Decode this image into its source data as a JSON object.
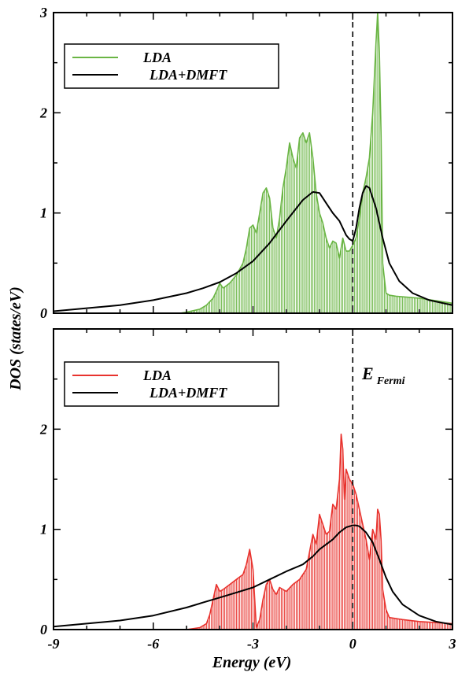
{
  "chart_data": [
    {
      "type": "area",
      "panel": "top",
      "xlim": [
        -9,
        3
      ],
      "ylim": [
        0,
        3
      ],
      "yticks": [
        "0",
        "1",
        "2",
        "3"
      ],
      "legend": "top-left",
      "series": [
        {
          "name": "LDA",
          "color": "#6ab544",
          "style": "filled-hatched",
          "x": [
            -9,
            -5.2,
            -5.0,
            -4.6,
            -4.4,
            -4.2,
            -4.1,
            -4.0,
            -3.9,
            -3.7,
            -3.5,
            -3.3,
            -3.2,
            -3.1,
            -3.0,
            -2.9,
            -2.8,
            -2.7,
            -2.6,
            -2.5,
            -2.4,
            -2.3,
            -2.2,
            -2.1,
            -2.0,
            -1.9,
            -1.8,
            -1.7,
            -1.6,
            -1.5,
            -1.4,
            -1.3,
            -1.2,
            -1.1,
            -1.0,
            -0.9,
            -0.8,
            -0.7,
            -0.6,
            -0.5,
            -0.4,
            -0.3,
            -0.2,
            -0.1,
            0.0,
            0.1,
            0.2,
            0.3,
            0.4,
            0.5,
            0.6,
            0.7,
            0.75,
            0.8,
            0.85,
            0.9,
            1.0,
            1.1,
            1.3,
            2.0,
            3.0
          ],
          "y": [
            0.0,
            0.0,
            0.01,
            0.04,
            0.08,
            0.15,
            0.22,
            0.3,
            0.25,
            0.3,
            0.38,
            0.5,
            0.65,
            0.85,
            0.88,
            0.8,
            1.0,
            1.2,
            1.25,
            1.15,
            0.85,
            0.75,
            0.95,
            1.25,
            1.45,
            1.7,
            1.55,
            1.45,
            1.75,
            1.8,
            1.7,
            1.8,
            1.55,
            1.2,
            1.0,
            0.9,
            0.75,
            0.65,
            0.72,
            0.7,
            0.55,
            0.75,
            0.62,
            0.62,
            0.68,
            0.75,
            0.95,
            1.2,
            1.35,
            1.55,
            2.0,
            2.7,
            3.0,
            2.6,
            1.8,
            0.5,
            0.2,
            0.18,
            0.17,
            0.15,
            0.1
          ]
        },
        {
          "name": "LDA+DMFT",
          "color": "#000000",
          "style": "line",
          "x": [
            -9,
            -8,
            -7,
            -6,
            -5,
            -4.5,
            -4,
            -3.5,
            -3,
            -2.5,
            -2,
            -1.5,
            -1.2,
            -1.0,
            -0.8,
            -0.6,
            -0.4,
            -0.2,
            -0.1,
            0.0,
            0.1,
            0.2,
            0.3,
            0.4,
            0.5,
            0.7,
            0.9,
            1.1,
            1.4,
            1.8,
            2.3,
            3.0
          ],
          "y": [
            0.02,
            0.05,
            0.08,
            0.13,
            0.2,
            0.25,
            0.31,
            0.4,
            0.52,
            0.7,
            0.92,
            1.13,
            1.21,
            1.2,
            1.1,
            1.0,
            0.92,
            0.78,
            0.74,
            0.72,
            0.85,
            1.05,
            1.2,
            1.27,
            1.25,
            1.05,
            0.75,
            0.5,
            0.32,
            0.2,
            0.13,
            0.08
          ]
        }
      ]
    },
    {
      "type": "area",
      "panel": "bottom",
      "xlim": [
        -9,
        3
      ],
      "ylim": [
        0,
        3
      ],
      "yticks": [
        "0",
        "1",
        "2"
      ],
      "xticks": [
        "-9",
        "-6",
        "-3",
        "0",
        "3"
      ],
      "xlabel": "Energy (eV)",
      "legend": "top-left",
      "series": [
        {
          "name": "LDA",
          "color": "#e8332e",
          "style": "filled-hatched",
          "x": [
            -9,
            -5.0,
            -4.6,
            -4.4,
            -4.3,
            -4.2,
            -4.1,
            -4.0,
            -3.9,
            -3.7,
            -3.5,
            -3.3,
            -3.2,
            -3.1,
            -3.0,
            -2.9,
            -2.8,
            -2.7,
            -2.6,
            -2.5,
            -2.4,
            -2.3,
            -2.2,
            -2.0,
            -1.8,
            -1.6,
            -1.5,
            -1.4,
            -1.2,
            -1.1,
            -1.0,
            -0.9,
            -0.8,
            -0.7,
            -0.6,
            -0.5,
            -0.4,
            -0.35,
            -0.3,
            -0.25,
            -0.2,
            -0.1,
            0.0,
            0.1,
            0.2,
            0.3,
            0.4,
            0.5,
            0.6,
            0.7,
            0.75,
            0.8,
            0.85,
            0.9,
            1.0,
            1.1,
            1.5,
            2.0,
            3.0
          ],
          "y": [
            0.0,
            0.0,
            0.02,
            0.06,
            0.15,
            0.3,
            0.45,
            0.38,
            0.4,
            0.45,
            0.5,
            0.55,
            0.65,
            0.8,
            0.6,
            0.02,
            0.1,
            0.3,
            0.45,
            0.5,
            0.4,
            0.35,
            0.42,
            0.38,
            0.45,
            0.5,
            0.55,
            0.6,
            0.95,
            0.85,
            1.15,
            1.05,
            0.95,
            0.98,
            1.25,
            1.2,
            1.5,
            1.95,
            1.8,
            1.3,
            1.6,
            1.5,
            1.45,
            1.35,
            1.2,
            1.05,
            0.9,
            0.7,
            1.0,
            0.9,
            1.2,
            1.15,
            0.9,
            0.4,
            0.2,
            0.12,
            0.1,
            0.08,
            0.06
          ]
        },
        {
          "name": "LDA+DMFT",
          "color": "#000000",
          "style": "line",
          "x": [
            -9,
            -8,
            -7,
            -6,
            -5,
            -4.5,
            -4,
            -3.5,
            -3,
            -2.5,
            -2,
            -1.5,
            -1.2,
            -1.0,
            -0.8,
            -0.6,
            -0.4,
            -0.2,
            0.0,
            0.1,
            0.2,
            0.4,
            0.6,
            0.8,
            1.0,
            1.2,
            1.5,
            2.0,
            2.5,
            3.0
          ],
          "y": [
            0.03,
            0.06,
            0.09,
            0.14,
            0.22,
            0.27,
            0.32,
            0.37,
            0.42,
            0.5,
            0.58,
            0.65,
            0.73,
            0.8,
            0.85,
            0.9,
            0.97,
            1.02,
            1.04,
            1.04,
            1.03,
            0.97,
            0.87,
            0.7,
            0.52,
            0.38,
            0.25,
            0.14,
            0.08,
            0.05
          ]
        }
      ]
    }
  ],
  "ylabel": "DOS (states/eV)",
  "fermi_label": {
    "main": "E",
    "sub": "Fermi"
  },
  "colors": {
    "lda_top": "#6ab544",
    "lda_bottom": "#e8332e",
    "dmft": "#000000"
  }
}
